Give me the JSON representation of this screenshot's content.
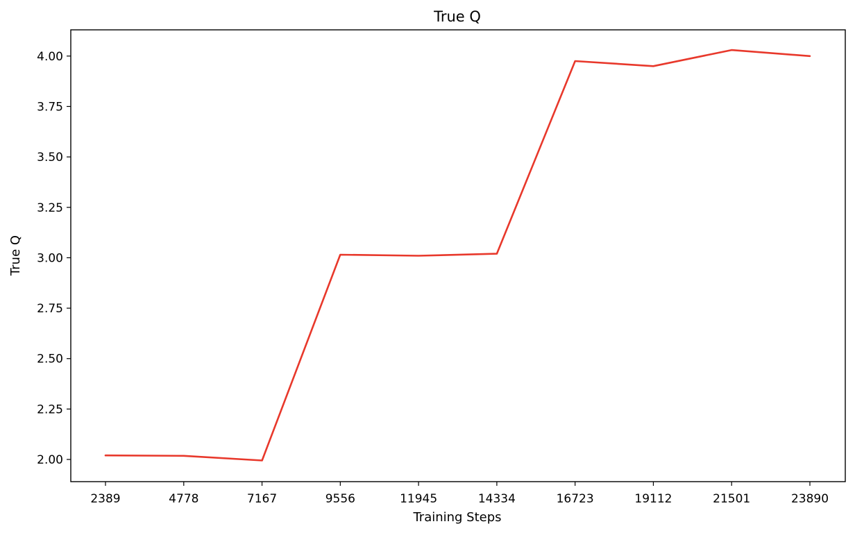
{
  "chart_data": {
    "type": "line",
    "title": "True Q",
    "xlabel": "Training Steps",
    "ylabel": "True Q",
    "x": [
      2389,
      4778,
      7167,
      9556,
      11945,
      14334,
      16723,
      19112,
      21501,
      23890
    ],
    "series": [
      {
        "values": [
          2.02,
          2.018,
          1.995,
          3.015,
          3.01,
          3.02,
          3.975,
          3.95,
          4.03,
          4.0
        ],
        "color": "#e8382b"
      }
    ],
    "x_tick_labels": [
      "2389",
      "4778",
      "7167",
      "9556",
      "11945",
      "14334",
      "16723",
      "19112",
      "21501",
      "23890"
    ],
    "y_ticks": [
      2.0,
      2.25,
      2.5,
      2.75,
      3.0,
      3.25,
      3.5,
      3.75,
      4.0
    ],
    "y_tick_labels": [
      "2.00",
      "2.25",
      "2.50",
      "2.75",
      "3.00",
      "3.25",
      "3.50",
      "3.75",
      "4.00"
    ],
    "ylim": [
      1.89,
      4.13
    ],
    "grid": false,
    "legend": false
  }
}
